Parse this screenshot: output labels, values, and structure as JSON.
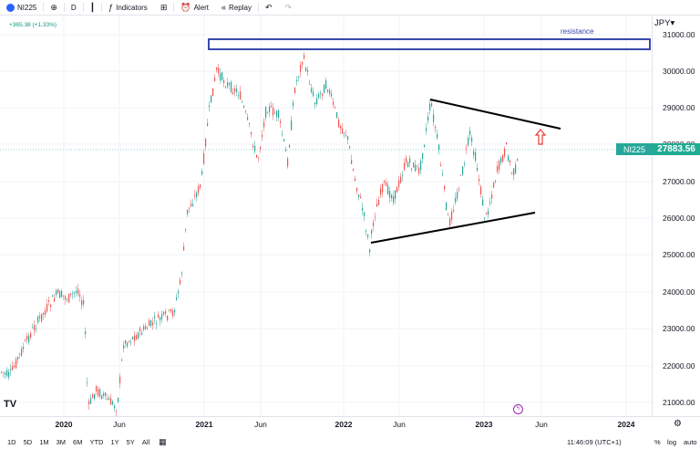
{
  "toolbar": {
    "symbol": "NI225",
    "interval": "D",
    "indicators_label": "Indicators",
    "alert_label": "Alert",
    "replay_label": "Replay"
  },
  "legend": {
    "change": "+365.38 (+1.33%)"
  },
  "chart": {
    "currency": "JPY",
    "price_label_symbol": "NI225",
    "last_price": "27883.56",
    "resistance_label": "resistance",
    "y_ticks": [
      "31000.00",
      "30000.00",
      "29000.00",
      "28000.00",
      "27000.00",
      "26000.00",
      "25000.00",
      "24000.00",
      "23000.00",
      "22000.00",
      "21000.00"
    ],
    "x_ticks": [
      {
        "label": "2020",
        "bold": true
      },
      {
        "label": "Jun",
        "bold": false
      },
      {
        "label": "2021",
        "bold": true
      },
      {
        "label": "Jun",
        "bold": false
      },
      {
        "label": "2022",
        "bold": true
      },
      {
        "label": "Jun",
        "bold": false
      },
      {
        "label": "2023",
        "bold": true
      },
      {
        "label": "Jun",
        "bold": false
      },
      {
        "label": "2024",
        "bold": true
      }
    ]
  },
  "bottom": {
    "ranges": [
      "1D",
      "5D",
      "1M",
      "3M",
      "6M",
      "YTD",
      "1Y",
      "5Y",
      "All"
    ],
    "time": "11:46:09 (UTC+1)",
    "percent": "%",
    "log": "log",
    "auto": "auto"
  },
  "colors": {
    "up": "#26a69a",
    "down": "#ef5350",
    "resistance_box": "#3949ab",
    "arrow": "#e53935"
  }
}
